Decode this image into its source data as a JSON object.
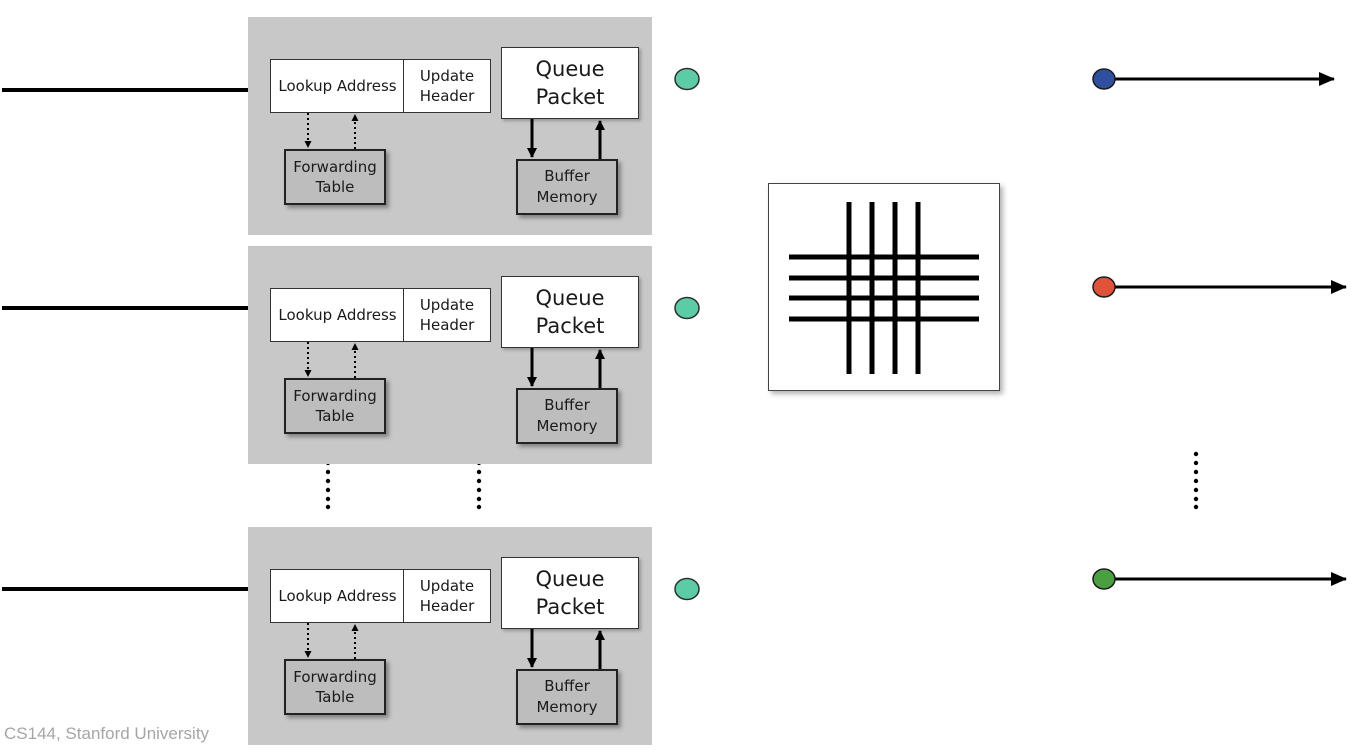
{
  "diagram": {
    "input_ports": [
      {
        "lookup_label": "Lookup Address",
        "update_label": "Update Header",
        "queue_label": "Queue Packet",
        "forwarding_label": "Forwarding Table",
        "buffer_label": "Buffer Memory"
      },
      {
        "lookup_label": "Lookup Address",
        "update_label": "Update Header",
        "queue_label": "Queue Packet",
        "forwarding_label": "Forwarding Table",
        "buffer_label": "Buffer Memory"
      },
      {
        "lookup_label": "Lookup Address",
        "update_label": "Update Header",
        "queue_label": "Queue Packet",
        "forwarding_label": "Forwarding Table",
        "buffer_label": "Buffer Memory"
      }
    ],
    "colors": {
      "port_background": "#c8c8c8",
      "input_dot": "#5ccca6",
      "output_dot_1": "#2f4fa0",
      "output_dot_2": "#e0533a",
      "output_dot_3": "#4aa040"
    }
  },
  "footer": {
    "text": "CS144, Stanford University"
  }
}
